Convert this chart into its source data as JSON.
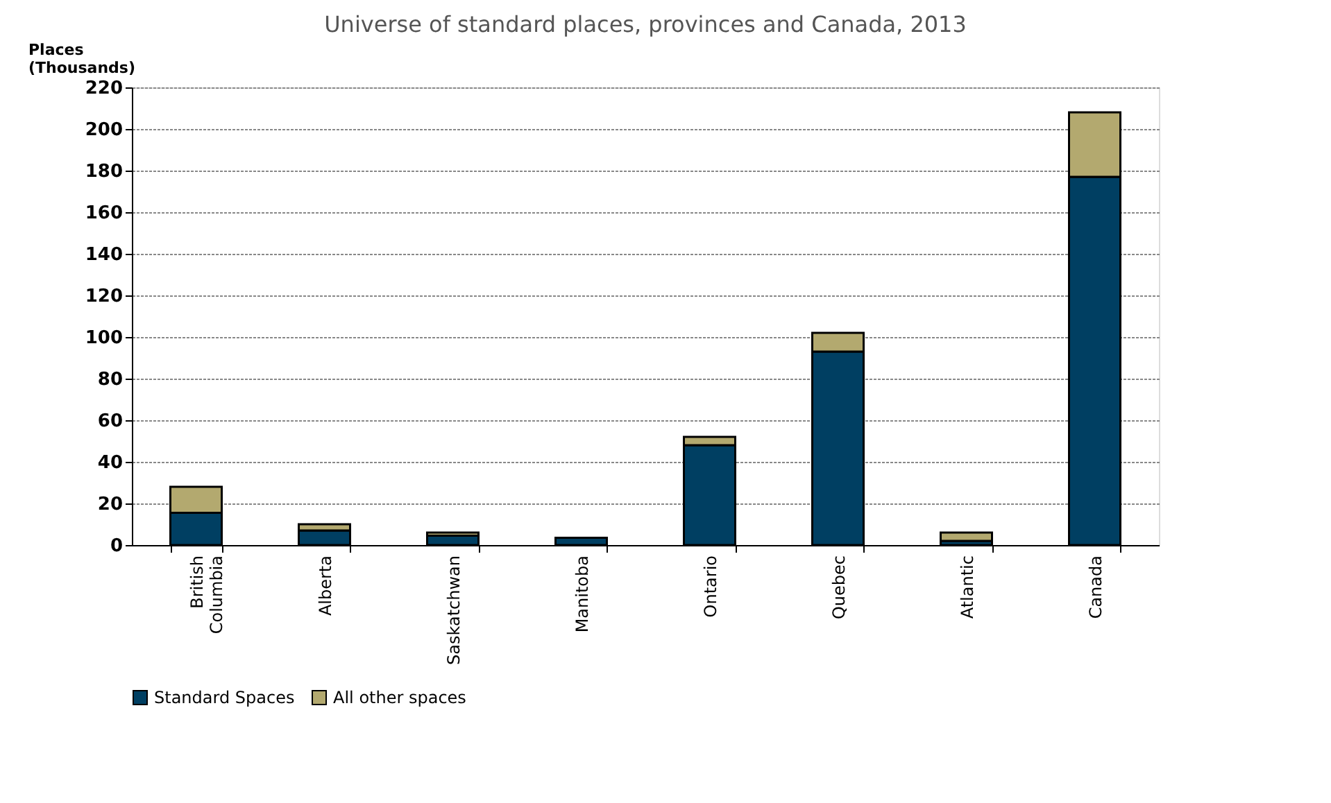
{
  "chart_data": {
    "type": "bar",
    "title": "Universe of standard places, provinces and Canada, 2013",
    "ylabel": "Places (Thousands)",
    "categories": [
      "British Columbia",
      "Alberta",
      "Saskatchwan",
      "Manitoba",
      "Ontario",
      "Quebec",
      "Atlantic",
      "Canada"
    ],
    "stacked": true,
    "series": [
      {
        "name": "Standard Spaces",
        "color": "#003f62",
        "values": [
          15.5,
          7,
          4.5,
          3.5,
          48,
          93,
          2,
          177
        ]
      },
      {
        "name": "All other spaces",
        "color": "#b3a96f",
        "values": [
          12.5,
          3,
          1.5,
          null,
          4,
          9,
          4,
          31
        ]
      }
    ],
    "ylim": [
      0,
      220
    ],
    "yticks": [
      0,
      20,
      40,
      60,
      80,
      100,
      120,
      140,
      160,
      180,
      200,
      220
    ],
    "grid": "y",
    "legend": "bottom"
  }
}
